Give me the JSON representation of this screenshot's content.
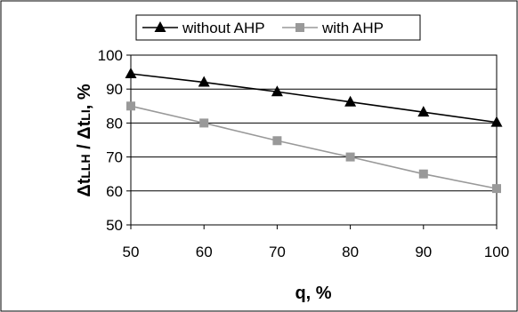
{
  "chart_data": {
    "type": "line",
    "title": "",
    "xlabel": "q, %",
    "ylabel_main": "Δt",
    "ylabel_sub1": "LLH",
    "ylabel_mid": " / Δt",
    "ylabel_sub2": "LI",
    "ylabel_tail": ", %",
    "x": [
      50,
      60,
      70,
      80,
      90,
      100
    ],
    "xlim": [
      50,
      100
    ],
    "ylim": [
      50,
      100
    ],
    "xticks": [
      "50",
      "60",
      "70",
      "80",
      "90",
      "100"
    ],
    "yticks": [
      "50",
      "60",
      "70",
      "80",
      "90",
      "100"
    ],
    "grid": "horizontal",
    "legend_position": "top",
    "series": [
      {
        "name": "without AHP",
        "marker": "triangle",
        "color": "#000000",
        "values": [
          94.5,
          92,
          89.2,
          86.2,
          83.2,
          80.2
        ]
      },
      {
        "name": "with AHP",
        "marker": "square",
        "color": "#999999",
        "values": [
          85,
          80,
          74.8,
          70,
          65,
          60.7
        ]
      }
    ]
  }
}
